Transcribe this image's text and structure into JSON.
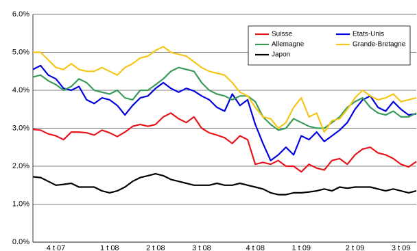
{
  "chart_data": {
    "type": "line",
    "categories": [
      null,
      null,
      null,
      "4 t 07",
      null,
      null,
      null,
      null,
      null,
      null,
      "1 t 08",
      null,
      null,
      null,
      null,
      null,
      "2 t 08",
      null,
      null,
      null,
      null,
      null,
      "3 t 08",
      null,
      null,
      null,
      null,
      null,
      null,
      "4 t 08",
      null,
      null,
      null,
      null,
      null,
      "1 t 09",
      null,
      null,
      null,
      null,
      null,
      null,
      "2 t 09",
      null,
      null,
      null,
      null,
      null,
      "3 t 09",
      null,
      null
    ],
    "series": [
      {
        "name": "Suisse",
        "color": "#e8141b",
        "values": [
          2.97,
          2.95,
          2.85,
          2.8,
          2.7,
          2.9,
          2.9,
          2.88,
          2.82,
          2.95,
          2.88,
          2.78,
          2.9,
          3.05,
          3.1,
          3.05,
          3.1,
          3.3,
          3.4,
          3.25,
          3.15,
          3.3,
          3.0,
          2.88,
          2.82,
          2.75,
          2.6,
          2.8,
          2.7,
          2.05,
          2.1,
          2.05,
          2.15,
          2.0,
          2.0,
          1.85,
          2.05,
          1.95,
          1.9,
          2.15,
          2.2,
          2.05,
          2.3,
          2.45,
          2.5,
          2.35,
          2.3,
          2.2,
          2.05,
          1.98,
          2.12
        ]
      },
      {
        "name": "Etats-Unis",
        "color": "#0000e0",
        "values": [
          4.55,
          4.65,
          4.4,
          4.3,
          4.05,
          4.0,
          4.1,
          3.75,
          3.65,
          3.8,
          3.75,
          3.6,
          3.35,
          3.6,
          3.8,
          3.85,
          4.05,
          4.2,
          4.05,
          3.95,
          4.05,
          3.98,
          3.85,
          3.75,
          3.55,
          3.45,
          3.9,
          3.6,
          3.75,
          3.1,
          2.6,
          2.15,
          2.3,
          2.5,
          2.3,
          2.8,
          2.7,
          2.9,
          2.65,
          2.8,
          2.95,
          3.15,
          3.5,
          3.75,
          3.85,
          3.55,
          3.45,
          3.7,
          3.5,
          3.35,
          3.38
        ]
      },
      {
        "name": "Allemagne",
        "color": "#3a9a5a",
        "values": [
          4.35,
          4.4,
          4.25,
          4.15,
          4.0,
          4.1,
          4.3,
          4.2,
          4.0,
          3.95,
          3.9,
          4.0,
          3.8,
          3.75,
          4.0,
          4.0,
          4.15,
          4.3,
          4.5,
          4.6,
          4.55,
          4.5,
          4.2,
          4.0,
          3.9,
          3.85,
          3.75,
          3.85,
          3.85,
          3.7,
          3.3,
          3.1,
          2.95,
          3.0,
          3.25,
          3.15,
          3.05,
          3.0,
          3.0,
          3.15,
          3.3,
          3.55,
          3.7,
          3.8,
          3.55,
          3.4,
          3.35,
          3.45,
          3.3,
          3.3,
          3.4
        ]
      },
      {
        "name": "Grande-Bretagne",
        "color": "#f5c518",
        "values": [
          5.0,
          5.0,
          4.8,
          4.6,
          4.55,
          4.7,
          4.55,
          4.5,
          4.5,
          4.6,
          4.5,
          4.4,
          4.6,
          4.7,
          4.85,
          4.9,
          5.05,
          5.15,
          5.0,
          4.95,
          4.9,
          4.75,
          4.6,
          4.5,
          4.45,
          4.4,
          4.2,
          3.95,
          3.85,
          3.55,
          3.3,
          3.25,
          3.0,
          3.15,
          3.55,
          3.8,
          3.3,
          3.4,
          2.9,
          3.2,
          3.25,
          3.5,
          3.8,
          4.0,
          3.85,
          3.75,
          3.8,
          3.9,
          3.7,
          3.75,
          3.8
        ]
      },
      {
        "name": "Japon",
        "color": "#000000",
        "values": [
          1.72,
          1.7,
          1.6,
          1.5,
          1.52,
          1.55,
          1.45,
          1.45,
          1.45,
          1.35,
          1.3,
          1.35,
          1.45,
          1.6,
          1.7,
          1.75,
          1.8,
          1.75,
          1.65,
          1.6,
          1.55,
          1.5,
          1.5,
          1.5,
          1.55,
          1.5,
          1.5,
          1.55,
          1.5,
          1.45,
          1.4,
          1.3,
          1.25,
          1.25,
          1.3,
          1.3,
          1.32,
          1.35,
          1.4,
          1.35,
          1.45,
          1.42,
          1.45,
          1.45,
          1.45,
          1.4,
          1.35,
          1.4,
          1.35,
          1.3,
          1.35
        ]
      }
    ],
    "ylim": [
      0,
      6
    ],
    "yticks": [
      {
        "value": 0,
        "label": "0.0%"
      },
      {
        "value": 1,
        "label": "1.0%"
      },
      {
        "value": 2,
        "label": "2.0%"
      },
      {
        "value": 3,
        "label": "3.0%"
      },
      {
        "value": 4,
        "label": "4.0%"
      },
      {
        "value": 5,
        "label": "5.0%"
      },
      {
        "value": 6,
        "label": "6.0%"
      }
    ],
    "grid": true,
    "legend": "upper right"
  }
}
